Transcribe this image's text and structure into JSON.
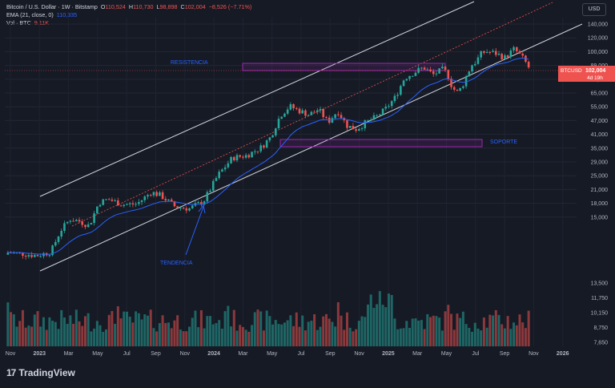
{
  "legend": {
    "symbol": "Bitcoin / U.S. Dollar · 1W · Bitstamp",
    "open_label": "O",
    "open": "110,524",
    "high_label": "H",
    "high": "110,730",
    "low_label": "L",
    "low": "98,898",
    "close_label": "C",
    "close": "102,004",
    "change": "−8,526 (−7.71%)",
    "ema_label": "EMA (21, close, 0)",
    "ema_value": "110,335",
    "vol_label": "Vol · BTC",
    "vol_value": "9.11K"
  },
  "currency_button": "USD",
  "branding": {
    "name": "TradingView",
    "mark": "17"
  },
  "colors": {
    "background": "#161a25",
    "up": "#26a69a",
    "down": "#ef5350",
    "ema": "#2962ff",
    "channel": "#d1d4dc",
    "zone": "#9c27b0",
    "annotation": "#2962ff",
    "price_label_bg": "#ef5350"
  },
  "chart_data": {
    "type": "candlestick",
    "scale": "log",
    "grid": true,
    "x_tick_labels": [
      "Nov",
      "2023",
      "Mar",
      "May",
      "Jul",
      "Sep",
      "Nov",
      "2024",
      "Mar",
      "May",
      "Jul",
      "Sep",
      "Nov",
      "2025",
      "Mar",
      "May",
      "Jul",
      "Sep",
      "Nov",
      "2026"
    ],
    "y_tick_labels": [
      "140,000",
      "120,000",
      "100,000",
      "89,000",
      "77,000",
      "65,000",
      "55,000",
      "47,000",
      "41,000",
      "35,000",
      "29,000",
      "25,000",
      "21,000",
      "18,000",
      "15,000"
    ],
    "volume_tick_labels": [
      "13,500",
      "11,750",
      "10,150",
      "8,750",
      "7,650"
    ],
    "last_price": {
      "symbol": "BTCUSD",
      "value": "102,004",
      "countdown": "4d 19h"
    },
    "annotations": {
      "resistance": "RESISTENCIA",
      "support": "SOPORTE",
      "trend": "TENDENCIA"
    },
    "zones": [
      {
        "name": "RESISTENCIA",
        "from": 105000,
        "to": 112000
      },
      {
        "name": "SOPORTE",
        "from": 49000,
        "to": 53000
      }
    ],
    "price_path": [
      [
        0,
        17000
      ],
      [
        0.03,
        16800
      ],
      [
        0.06,
        16500
      ],
      [
        0.09,
        17100
      ],
      [
        0.11,
        21000
      ],
      [
        0.13,
        23500
      ],
      [
        0.15,
        23000
      ],
      [
        0.17,
        22000
      ],
      [
        0.19,
        27500
      ],
      [
        0.21,
        28500
      ],
      [
        0.24,
        27000
      ],
      [
        0.27,
        27200
      ],
      [
        0.3,
        30500
      ],
      [
        0.32,
        29500
      ],
      [
        0.35,
        26500
      ],
      [
        0.38,
        26000
      ],
      [
        0.41,
        28000
      ],
      [
        0.44,
        36000
      ],
      [
        0.47,
        42500
      ],
      [
        0.5,
        43500
      ],
      [
        0.53,
        47000
      ],
      [
        0.55,
        52000
      ],
      [
        0.57,
        64000
      ],
      [
        0.59,
        70000
      ],
      [
        0.61,
        67000
      ],
      [
        0.63,
        64500
      ],
      [
        0.65,
        68000
      ],
      [
        0.67,
        60000
      ],
      [
        0.69,
        67000
      ],
      [
        0.71,
        58000
      ],
      [
        0.73,
        56000
      ],
      [
        0.75,
        60000
      ],
      [
        0.77,
        63000
      ],
      [
        0.79,
        68000
      ],
      [
        0.81,
        76000
      ],
      [
        0.83,
        92000
      ],
      [
        0.85,
        97000
      ],
      [
        0.87,
        102000
      ],
      [
        0.89,
        95000
      ],
      [
        0.91,
        100000
      ],
      [
        0.92,
        96000
      ],
      [
        0.93,
        84000
      ],
      [
        0.94,
        80000
      ],
      [
        0.95,
        84000
      ],
      [
        0.96,
        94000
      ],
      [
        0.97,
        104000
      ],
      [
        0.98,
        108000
      ],
      [
        0.99,
        116000
      ],
      [
        1.0,
        119000
      ],
      [
        1.02,
        117000
      ],
      [
        1.04,
        112000
      ],
      [
        1.06,
        122000
      ],
      [
        1.08,
        110000
      ],
      [
        1.09,
        102004
      ]
    ],
    "volume_bars": 176
  }
}
